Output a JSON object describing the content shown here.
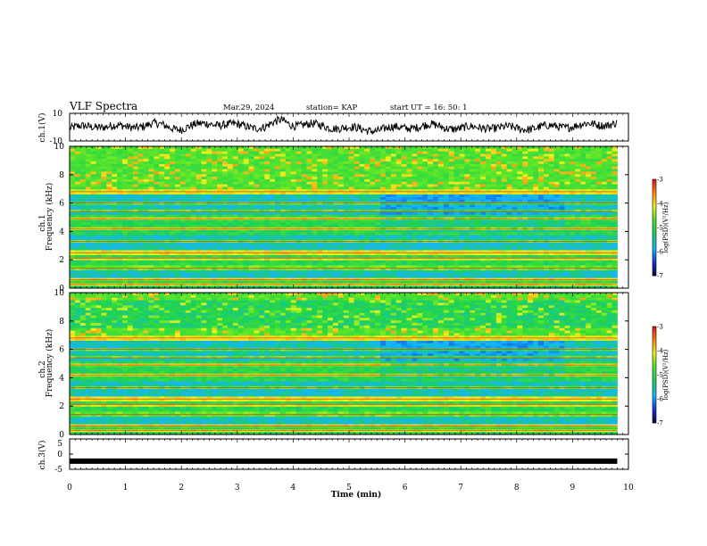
{
  "header": {
    "title": "VLF Spectra",
    "date": "Mar.29, 2024",
    "station": "station= KAP",
    "start": "start  UT =   16: 50: 1"
  },
  "chart_data": [
    {
      "type": "line",
      "panel": "ch1-waveform",
      "ylabel": "ch.1(V)",
      "ylim": [
        -10,
        10
      ],
      "yticks": [
        "10",
        "-10"
      ],
      "xlim": [
        0,
        10
      ],
      "series": [
        {
          "x": [
            0,
            0.5,
            1,
            1.5,
            2,
            2.5,
            3,
            3.5,
            3.8,
            4,
            4.5,
            5,
            5.5,
            6,
            6.5,
            7,
            7.5,
            8,
            8.5,
            9,
            9.5,
            9.8
          ],
          "values": [
            -1,
            1,
            0,
            2,
            -1,
            3,
            1,
            0,
            5,
            2,
            1,
            -1,
            -2,
            0,
            1,
            -1,
            0,
            -1,
            0,
            1,
            2,
            3
          ]
        }
      ]
    },
    {
      "type": "heatmap",
      "panel": "ch1-spectrogram",
      "ylabel": "Frequency (kHz)",
      "channel": "ch.1",
      "yticks": [
        "0",
        "2",
        "4",
        "6",
        "8",
        "10"
      ],
      "ylim": [
        0,
        10
      ],
      "xlim": [
        0,
        10
      ],
      "colorbar": {
        "label": "log(PSD)(V²/Hz)",
        "ticks": [
          "-3",
          "-4",
          "-5",
          "-6",
          "-7"
        ],
        "range": [
          -7,
          -3
        ]
      }
    },
    {
      "type": "heatmap",
      "panel": "ch2-spectrogram",
      "ylabel": "Frequency (kHz)",
      "channel": "ch.2",
      "yticks": [
        "0",
        "2",
        "4",
        "6",
        "8",
        "10"
      ],
      "ylim": [
        0,
        10
      ],
      "xlim": [
        0,
        10
      ],
      "colorbar": {
        "label": "log(PSD)(V²/Hz)",
        "ticks": [
          "-3",
          "-4",
          "-5",
          "-6",
          "-7"
        ],
        "range": [
          -7,
          -3
        ]
      }
    },
    {
      "type": "line",
      "panel": "ch3-waveform",
      "ylabel": "ch.3(V)",
      "ylim": [
        -5,
        5
      ],
      "yticks": [
        "5",
        "0",
        "-5"
      ],
      "xlim": [
        0,
        10
      ],
      "series": [
        {
          "x": [
            0,
            9.8
          ],
          "values": [
            -2.3,
            -2.3
          ]
        }
      ]
    }
  ],
  "xaxis": {
    "label": "Time (min)",
    "ticks": [
      "0",
      "1",
      "2",
      "3",
      "4",
      "5",
      "6",
      "7",
      "8",
      "9",
      "10"
    ]
  },
  "colors": {
    "line": "#000000",
    "spectro_base": "#22d24a",
    "spectro_low": "#1fc8ff",
    "spectro_high": "#ff2a1a"
  }
}
